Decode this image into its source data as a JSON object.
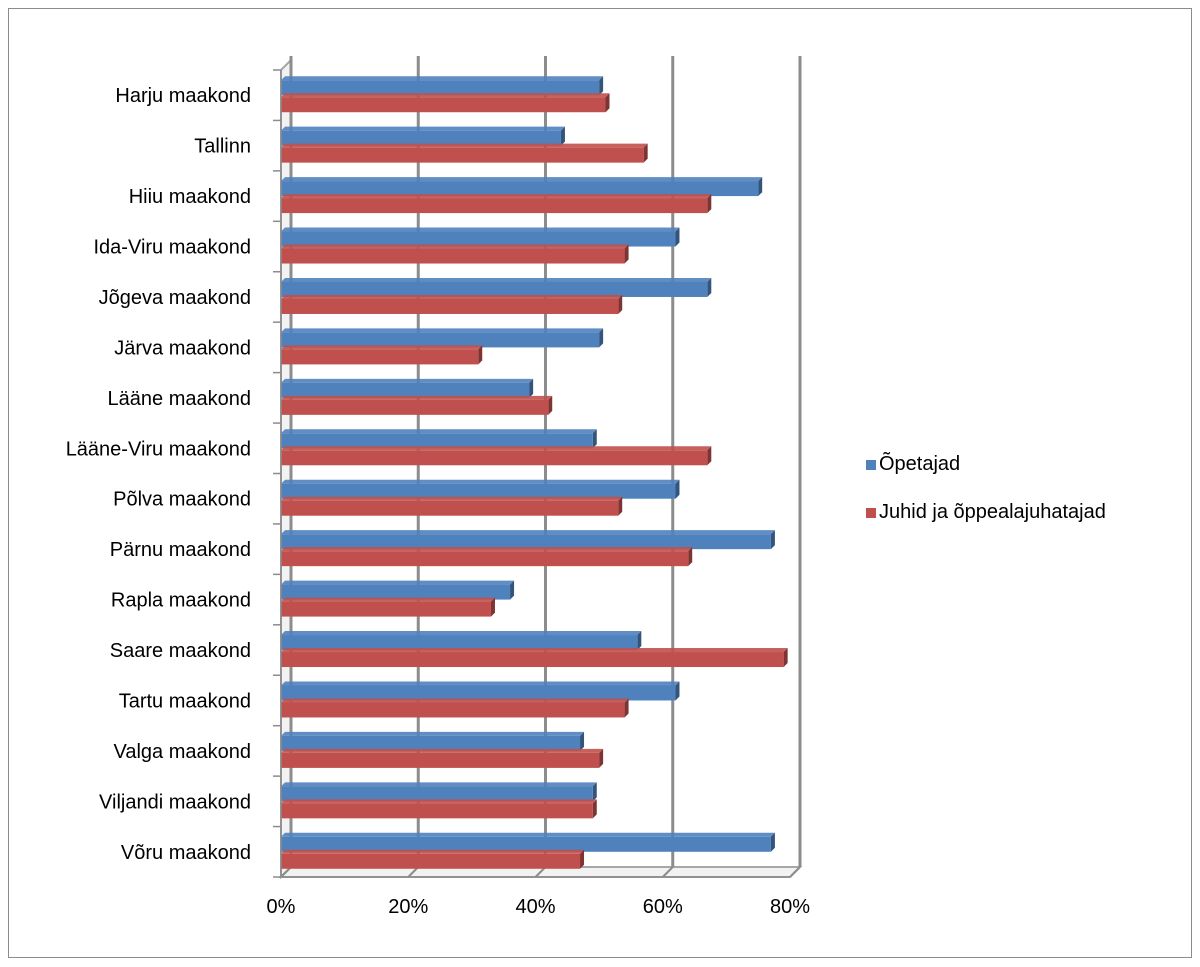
{
  "chart_data": {
    "type": "bar",
    "orientation": "horizontal",
    "title": "",
    "xlabel": "",
    "ylabel": "",
    "xlim": [
      0,
      80
    ],
    "x_ticks": [
      "0%",
      "20%",
      "40%",
      "60%",
      "80%"
    ],
    "x_tick_values": [
      0,
      20,
      40,
      60,
      80
    ],
    "grid": true,
    "legend_position": "right",
    "categories": [
      "Harju maakond",
      "Tallinn",
      "Hiiu maakond",
      "Ida-Viru maakond",
      "Jõgeva maakond",
      "Järva maakond",
      "Lääne maakond",
      "Lääne-Viru maakond",
      "Põlva maakond",
      "Pärnu maakond",
      "Rapla maakond",
      "Saare maakond",
      "Tartu maakond",
      "Valga maakond",
      "Viljandi maakond",
      "Võru maakond"
    ],
    "series": [
      {
        "name": "Õpetajad",
        "color": "#4f81bd",
        "values": [
          50,
          44,
          75,
          62,
          67,
          50,
          39,
          49,
          62,
          77,
          36,
          56,
          62,
          47,
          49,
          77
        ]
      },
      {
        "name": "Juhid ja õppealajuhatajad",
        "color": "#c0504d",
        "values": [
          51,
          57,
          67,
          54,
          53,
          31,
          42,
          67,
          53,
          64,
          33,
          79,
          54,
          50,
          49,
          47
        ]
      }
    ]
  }
}
